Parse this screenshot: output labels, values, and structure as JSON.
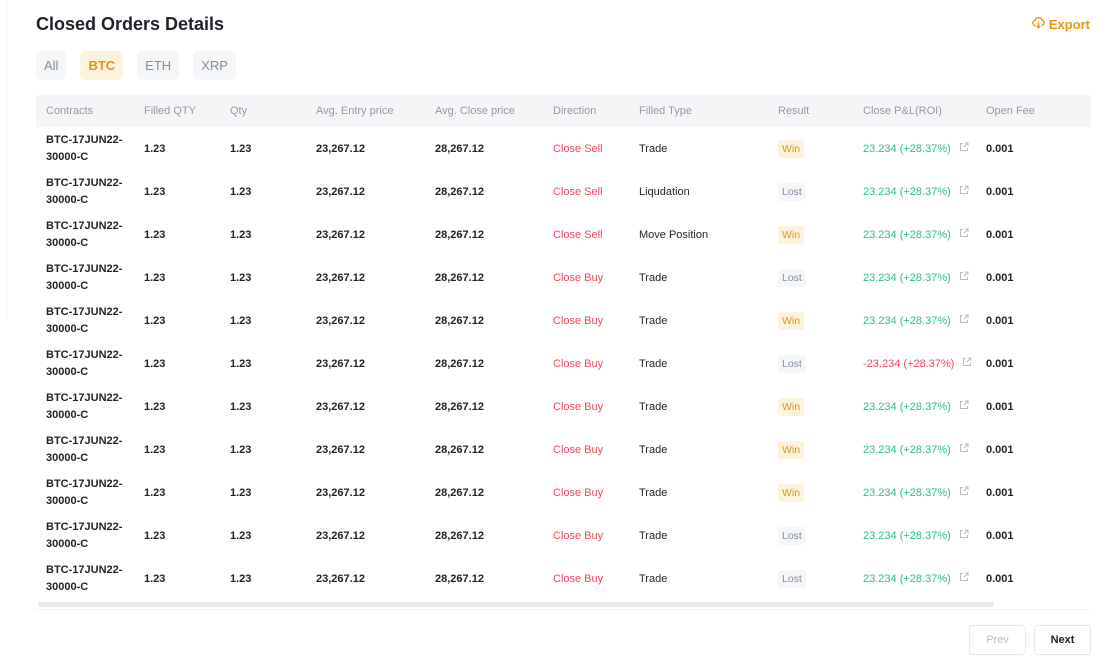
{
  "title": "Closed Orders Details",
  "export_label": "Export",
  "tabs": [
    {
      "label": "All",
      "active": false
    },
    {
      "label": "BTC",
      "active": true
    },
    {
      "label": "ETH",
      "active": false
    },
    {
      "label": "XRP",
      "active": false
    }
  ],
  "columns": [
    "Contracts",
    "Filled QTY",
    "Qty",
    "Avg. Entry price",
    "Avg. Close price",
    "Direction",
    "Filled Type",
    "Result",
    "Close P&L(ROI)",
    "Open Fee"
  ],
  "rows": [
    [
      "BTC-17JUN22-30000-C",
      "1.23",
      "1.23",
      "23,267.12",
      "28,267.12",
      "Close Sell",
      "Trade",
      "Win",
      "23.234 (+28.37%)",
      "0.001"
    ],
    [
      "BTC-17JUN22-30000-C",
      "1.23",
      "1.23",
      "23,267.12",
      "28,267.12",
      "Close Sell",
      "Liqudation",
      "Lost",
      "23.234 (+28.37%)",
      "0.001"
    ],
    [
      "BTC-17JUN22-30000-C",
      "1.23",
      "1.23",
      "23,267.12",
      "28,267.12",
      "Close Sell",
      "Move Position",
      "Win",
      "23.234 (+28.37%)",
      "0.001"
    ],
    [
      "BTC-17JUN22-30000-C",
      "1.23",
      "1.23",
      "23,267.12",
      "28,267.12",
      "Close Buy",
      "Trade",
      "Lost",
      "23.234 (+28.37%)",
      "0.001"
    ],
    [
      "BTC-17JUN22-30000-C",
      "1.23",
      "1.23",
      "23,267.12",
      "28,267.12",
      "Close Buy",
      "Trade",
      "Win",
      "23.234 (+28.37%)",
      "0.001"
    ],
    [
      "BTC-17JUN22-30000-C",
      "1.23",
      "1.23",
      "23,267.12",
      "28,267.12",
      "Close Buy",
      "Trade",
      "Lost",
      "-23.234 (+28.37%)",
      "0.001"
    ],
    [
      "BTC-17JUN22-30000-C",
      "1.23",
      "1.23",
      "23,267.12",
      "28,267.12",
      "Close Buy",
      "Trade",
      "Win",
      "23.234 (+28.37%)",
      "0.001"
    ],
    [
      "BTC-17JUN22-30000-C",
      "1.23",
      "1.23",
      "23,267.12",
      "28,267.12",
      "Close Buy",
      "Trade",
      "Win",
      "23.234 (+28.37%)",
      "0.001"
    ],
    [
      "BTC-17JUN22-30000-C",
      "1.23",
      "1.23",
      "23,267.12",
      "28,267.12",
      "Close Buy",
      "Trade",
      "Win",
      "23.234 (+28.37%)",
      "0.001"
    ],
    [
      "BTC-17JUN22-30000-C",
      "1.23",
      "1.23",
      "23,267.12",
      "28,267.12",
      "Close Buy",
      "Trade",
      "Lost",
      "23.234 (+28.37%)",
      "0.001"
    ],
    [
      "BTC-17JUN22-30000-C",
      "1.23",
      "1.23",
      "23,267.12",
      "28,267.12",
      "Close Buy",
      "Trade",
      "Lost",
      "23.234 (+28.37%)",
      "0.001"
    ]
  ],
  "pagination": {
    "prev": "Prev",
    "next": "Next"
  },
  "colors": {
    "accent": "#e8941a",
    "profit": "#2ebd85",
    "loss": "#f6465d"
  }
}
